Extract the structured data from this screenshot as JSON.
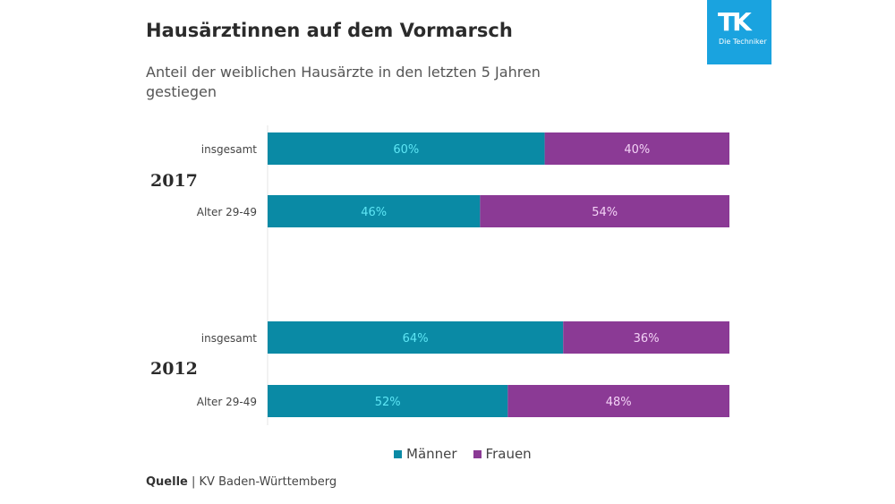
{
  "header": {
    "title": "Hausärztinnen auf dem Vormarsch",
    "subtitle": "Anteil der weiblichen Hausärzte in den letzten 5 Jahren gestiegen"
  },
  "logo": {
    "mark": "TK",
    "text": "Die Techniker",
    "color": "#1aa3df"
  },
  "source": {
    "label": "Quelle",
    "separator": "|",
    "text": "KV Baden-Württemberg"
  },
  "chart_data": {
    "type": "bar",
    "orientation": "horizontal",
    "stacked": true,
    "normalized": true,
    "title": "Hausärztinnen auf dem Vormarsch",
    "subtitle": "Anteil der weiblichen Hausärzte in den letzten 5 Jahren gestiegen",
    "xlabel": "",
    "ylabel": "",
    "xlim": [
      0,
      100
    ],
    "grid": false,
    "legend_position": "bottom",
    "groups": [
      {
        "label": "2017",
        "categories": [
          "insgesamt",
          "Alter 29-49"
        ]
      },
      {
        "label": "2012",
        "categories": [
          "insgesamt",
          "Alter 29-49"
        ]
      }
    ],
    "categories": [
      "2017 insgesamt",
      "2017 Alter 29-49",
      "2012 insgesamt",
      "2012 Alter 29-49"
    ],
    "series": [
      {
        "name": "Männer",
        "color": "#0a8aa5",
        "label_color": "#5ee6f5",
        "values": [
          60,
          46,
          64,
          52
        ],
        "labels": [
          "60%",
          "46%",
          "64%",
          "52%"
        ]
      },
      {
        "name": "Frauen",
        "color": "#8b3a95",
        "label_color": "#f3d2f6",
        "values": [
          40,
          54,
          36,
          48
        ],
        "labels": [
          "40%",
          "54%",
          "36%",
          "48%"
        ]
      }
    ]
  }
}
